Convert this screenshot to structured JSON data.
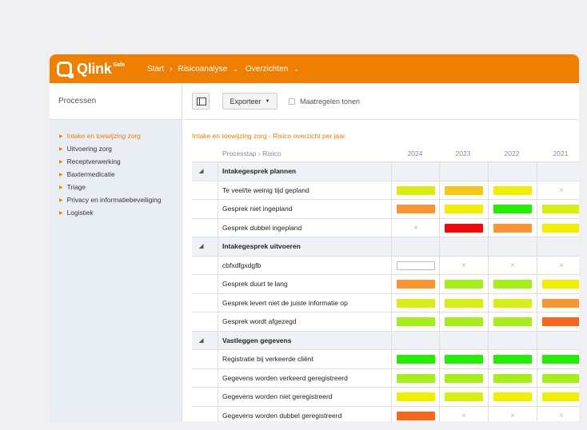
{
  "app": {
    "logo_text": "Qlink",
    "logo_sup": "Safe"
  },
  "nav": {
    "items": [
      {
        "label": "Start"
      },
      {
        "label": "Risicoanalyse"
      },
      {
        "label": "Overzichten"
      }
    ]
  },
  "sidebar": {
    "title": "Processen",
    "items": [
      {
        "label": "Intake en toewijzing zorg",
        "active": true
      },
      {
        "label": "Uitvoering zorg"
      },
      {
        "label": "Receptverwerking"
      },
      {
        "label": "Baxtermedicatie"
      },
      {
        "label": "Triage"
      },
      {
        "label": "Privacy en informatiebeveiliging"
      },
      {
        "label": "Logistiek"
      }
    ]
  },
  "toolbar": {
    "export_label": "Exporteer",
    "measures_label": "Maatregelen tonen",
    "measures_checked": false
  },
  "report": {
    "title": "Intake en toewijzing zorg - Risico overzicht per jaar",
    "col_processtap": "Processtap",
    "col_risico": "Risico",
    "years": [
      "2024",
      "2023",
      "2022",
      "2021"
    ]
  },
  "colors": {
    "accent": "#ee7f01",
    "green": "#22ee00",
    "light_green": "#a6ee1a",
    "yellow_green": "#d8ee10",
    "yellow": "#f2ee00",
    "yellow_orange": "#f5c818",
    "orange": "#fa9530",
    "dark_orange": "#fc6419",
    "red": "#f20a0a"
  },
  "rows": [
    {
      "type": "group",
      "label": "Intakegesprek plannen"
    },
    {
      "type": "risk",
      "label": "Te veel/te weinig tijd gepland",
      "cells": [
        "#d8ee10",
        "#f5c818",
        "#f2ee00",
        "na"
      ]
    },
    {
      "type": "risk",
      "label": "Gesprek niet ingepland",
      "cells": [
        "#fa9530",
        "#f2ee00",
        "#22ee00",
        "#d8ee10"
      ]
    },
    {
      "type": "risk",
      "label": "Gesprek dubbel ingepland",
      "cells": [
        "na",
        "#f20a0a",
        "#fa9530",
        "#f2ee00"
      ]
    },
    {
      "type": "group",
      "label": "Intakegesprek uitvoeren"
    },
    {
      "type": "risk",
      "label": "cbfxdfgxdgfb",
      "cells": [
        "empty",
        "na",
        "na",
        "na"
      ]
    },
    {
      "type": "risk",
      "label": "Gesprek duurt te lang",
      "cells": [
        "#fa9530",
        "#a6ee1a",
        "#a6ee1a",
        "#f2ee00"
      ]
    },
    {
      "type": "risk",
      "label": "Gesprek levert niet de juiste informatie op",
      "cells": [
        "#d8ee10",
        "#d8ee10",
        "#d8ee10",
        "#fa9530"
      ]
    },
    {
      "type": "risk",
      "label": "Gesprek wordt afgezegd",
      "cells": [
        "#a6ee1a",
        "#a6ee1a",
        "#a6ee1a",
        "#fc6419"
      ]
    },
    {
      "type": "group",
      "label": "Vastleggen gegevens"
    },
    {
      "type": "risk",
      "label": "Registratie bij verkeerde cliënt",
      "cells": [
        "#22ee00",
        "#22ee00",
        "#22ee00",
        "#22ee00"
      ]
    },
    {
      "type": "risk",
      "label": "Gegevens worden verkeerd geregistreerd",
      "cells": [
        "#a6ee1a",
        "#a6ee1a",
        "#a6ee1a",
        "#a6ee1a"
      ]
    },
    {
      "type": "risk",
      "label": "Gegevens worden niet geregistreerd",
      "cells": [
        "#f2ee00",
        "#d8ee10",
        "#f2ee00",
        "#f2ee00"
      ]
    },
    {
      "type": "risk",
      "label": "Gegevens worden dubbel geregistreerd",
      "cells": [
        "#fc6419",
        "na",
        "na",
        "na"
      ]
    }
  ]
}
